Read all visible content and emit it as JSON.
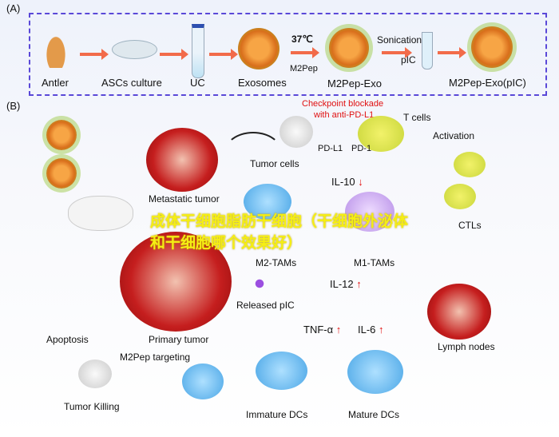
{
  "panel_a": {
    "label": "(A)",
    "steps": [
      "Antler",
      "ASCs culture",
      "UC",
      "Exosomes",
      "M2Pep-Exo",
      "M2Pep-Exo(pIC)"
    ],
    "temperature": "37℃",
    "m2pep": "M2Pep",
    "sonication": "Sonication",
    "pic": "pIC"
  },
  "panel_b": {
    "label": "(B)",
    "checkpoint_line1": "Checkpoint blockade",
    "checkpoint_line2": "with anti-PD-L1",
    "t_cells": "T cells",
    "pd_l1": "PD-L1",
    "pd_1": "PD-1",
    "tumor_cells": "Tumor cells",
    "activation": "Activation",
    "metastatic_tumor": "Metastatic tumor",
    "il10": "IL-10",
    "m2_tams": "M2-TAMs",
    "m1_tams": "M1-TAMs",
    "ctls": "CTLs",
    "released_pic": "Released pIC",
    "il12": "IL-12",
    "primary_tumor": "Primary tumor",
    "apoptosis": "Apoptosis",
    "m2pep_targeting": "M2Pep targeting",
    "tnf_a": "TNF-α",
    "il6": "IL-6",
    "lymph_nodes": "Lymph nodes",
    "tumor_killing": "Tumor Killing",
    "immature_dcs": "Immature DCs",
    "mature_dcs": "Mature DCs",
    "up_arrow": "↑",
    "down_arrow": "↓"
  },
  "watermark": "成体干细胞脂肪干细胞（干细胞外泌体和干细胞哪个效果好）",
  "colors": {
    "arrow": "#f26b4a",
    "dashed_border": "#5a48d8",
    "checkpoint": "#e01010",
    "watermark": "#f5ee14"
  }
}
